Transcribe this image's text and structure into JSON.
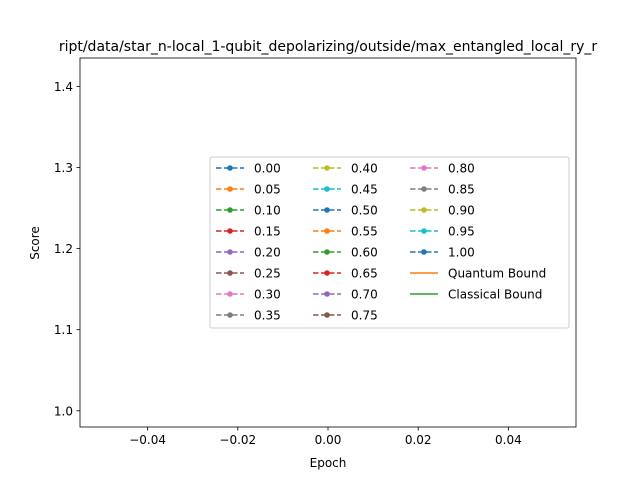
{
  "chart_data": {
    "type": "line",
    "title": "ript/data/star_n-local_1-qubit_depolarizing/outside/max_entangled_local_ry_r",
    "xlabel": "Epoch",
    "ylabel": "Score",
    "xlim": [
      -0.055,
      0.055
    ],
    "ylim": [
      0.98,
      1.435
    ],
    "x_ticks": [
      -0.04,
      -0.02,
      0.0,
      0.02,
      0.04
    ],
    "x_tick_labels": [
      "−0.04",
      "−0.02",
      "0.00",
      "0.02",
      "0.04"
    ],
    "y_ticks": [
      1.0,
      1.1,
      1.2,
      1.3,
      1.4
    ],
    "y_tick_labels": [
      "1.0",
      "1.1",
      "1.2",
      "1.3",
      "1.4"
    ],
    "grid": false,
    "legend_position": "center-right",
    "legend_columns": 3,
    "series": [
      {
        "name": "0.00",
        "color": "#1f77b4",
        "style": "dashed-marker",
        "values": []
      },
      {
        "name": "0.05",
        "color": "#ff7f0e",
        "style": "dashed-marker",
        "values": []
      },
      {
        "name": "0.10",
        "color": "#2ca02c",
        "style": "dashed-marker",
        "values": []
      },
      {
        "name": "0.15",
        "color": "#d62728",
        "style": "dashed-marker",
        "values": []
      },
      {
        "name": "0.20",
        "color": "#9467bd",
        "style": "dashed-marker",
        "values": []
      },
      {
        "name": "0.25",
        "color": "#8c564b",
        "style": "dashed-marker",
        "values": []
      },
      {
        "name": "0.30",
        "color": "#e377c2",
        "style": "dashed-marker",
        "values": []
      },
      {
        "name": "0.35",
        "color": "#7f7f7f",
        "style": "dashed-marker",
        "values": []
      },
      {
        "name": "0.40",
        "color": "#bcbd22",
        "style": "dashed-marker",
        "values": []
      },
      {
        "name": "0.45",
        "color": "#17becf",
        "style": "dashed-marker",
        "values": []
      },
      {
        "name": "0.50",
        "color": "#1f77b4",
        "style": "dashed-marker",
        "values": []
      },
      {
        "name": "0.55",
        "color": "#ff7f0e",
        "style": "dashed-marker",
        "values": []
      },
      {
        "name": "0.60",
        "color": "#2ca02c",
        "style": "dashed-marker",
        "values": []
      },
      {
        "name": "0.65",
        "color": "#d62728",
        "style": "dashed-marker",
        "values": []
      },
      {
        "name": "0.70",
        "color": "#9467bd",
        "style": "dashed-marker",
        "values": []
      },
      {
        "name": "0.75",
        "color": "#8c564b",
        "style": "dashed-marker",
        "values": []
      },
      {
        "name": "0.80",
        "color": "#e377c2",
        "style": "dashed-marker",
        "values": []
      },
      {
        "name": "0.85",
        "color": "#7f7f7f",
        "style": "dashed-marker",
        "values": []
      },
      {
        "name": "0.90",
        "color": "#bcbd22",
        "style": "dashed-marker",
        "values": []
      },
      {
        "name": "0.95",
        "color": "#17becf",
        "style": "dashed-marker",
        "values": []
      },
      {
        "name": "1.00",
        "color": "#1f77b4",
        "style": "dashed-marker",
        "values": []
      },
      {
        "name": "Quantum Bound",
        "color": "#ff7f0e",
        "style": "solid",
        "values": []
      },
      {
        "name": "Classical Bound",
        "color": "#2ca02c",
        "style": "solid",
        "values": []
      }
    ]
  }
}
